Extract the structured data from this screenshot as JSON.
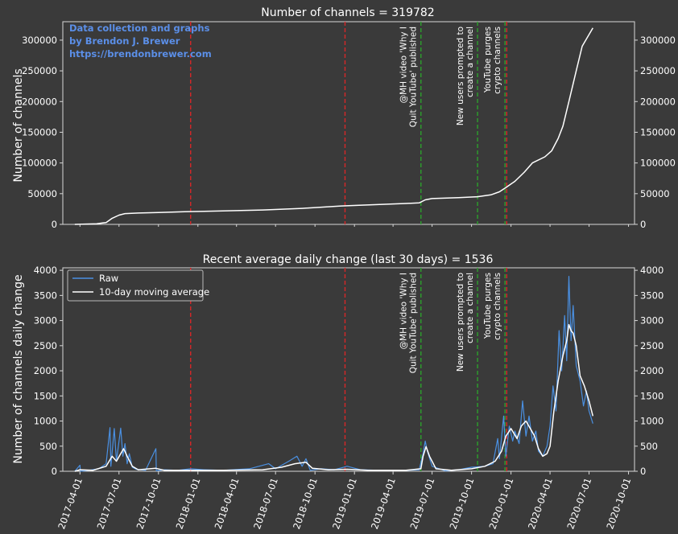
{
  "colors": {
    "background": "#3a3a3a",
    "axes": "#d8d8d8",
    "text": "#ffffff",
    "raw": "#4a90e2",
    "avg": "#ffffff",
    "red_line": "#d62728",
    "green_line": "#2ca02c",
    "credit": "#5b8fe8"
  },
  "credit": [
    "Data collection and graphs",
    "by Brendon J. Brewer",
    "https://brendonbrewer.com"
  ],
  "chart_data": [
    {
      "type": "line",
      "title": "Number of channels = 319782",
      "xlabel": "",
      "ylabel": "Number of channels",
      "ylim": [
        0,
        330000
      ],
      "yticks": [
        0,
        50000,
        100000,
        150000,
        200000,
        250000,
        300000
      ],
      "ytick_labels": [
        "0",
        "50000",
        "100000",
        "150000",
        "200000",
        "250000",
        "300000"
      ],
      "right_axis": true,
      "grid": false,
      "series": [
        {
          "points": [
            [
              "2017-03-20",
              0
            ],
            [
              "2017-05-10",
              1000
            ],
            [
              "2017-06-01",
              3000
            ],
            [
              "2017-06-15",
              10000
            ],
            [
              "2017-07-01",
              15000
            ],
            [
              "2017-07-15",
              17500
            ],
            [
              "2017-08-15",
              18500
            ],
            [
              "2017-10-01",
              19300
            ],
            [
              "2017-12-01",
              20500
            ],
            [
              "2018-03-01",
              22000
            ],
            [
              "2018-06-01",
              23500
            ],
            [
              "2018-09-01",
              26000
            ],
            [
              "2018-12-01",
              30000
            ],
            [
              "2019-03-01",
              32500
            ],
            [
              "2019-05-01",
              34000
            ],
            [
              "2019-06-01",
              35000
            ],
            [
              "2019-06-15",
              40000
            ],
            [
              "2019-07-01",
              42000
            ],
            [
              "2019-09-01",
              43500
            ],
            [
              "2019-10-15",
              45000
            ],
            [
              "2019-11-15",
              48000
            ],
            [
              "2019-12-05",
              53000
            ],
            [
              "2019-12-20",
              60000
            ],
            [
              "2020-01-10",
              70000
            ],
            [
              "2020-02-01",
              85000
            ],
            [
              "2020-02-20",
              100000
            ],
            [
              "2020-03-20",
              110000
            ],
            [
              "2020-04-05",
              120000
            ],
            [
              "2020-04-20",
              140000
            ],
            [
              "2020-05-01",
              160000
            ],
            [
              "2020-05-15",
              200000
            ],
            [
              "2020-06-01",
              250000
            ],
            [
              "2020-06-15",
              290000
            ],
            [
              "2020-07-10",
              319782
            ]
          ]
        }
      ],
      "vlines": [
        {
          "date": "2017-12-15",
          "color": "red"
        },
        {
          "date": "2018-12-10",
          "color": "red"
        },
        {
          "date": "2019-06-05",
          "color": "green",
          "label": "@MH video 'Why I Quit YouTube' published"
        },
        {
          "date": "2019-10-15",
          "color": "green",
          "label": "New users prompted to create a channel"
        },
        {
          "date": "2019-12-18",
          "color": "green",
          "label": "YouTube purges crypto channels"
        },
        {
          "date": "2019-12-22",
          "color": "red"
        }
      ]
    },
    {
      "type": "line",
      "title": "Recent average daily change (last 30 days) = 1536",
      "xlabel": "",
      "ylabel": "Number of channels daily change",
      "ylim": [
        0,
        4050
      ],
      "yticks": [
        0,
        500,
        1000,
        1500,
        2000,
        2500,
        3000,
        3500,
        4000
      ],
      "ytick_labels": [
        "0",
        "500",
        "1000",
        "1500",
        "2000",
        "2500",
        "3000",
        "3500",
        "4000"
      ],
      "right_axis": true,
      "grid": false,
      "legend": "top-left",
      "x_tick_labels": [
        "2017-04-01",
        "2017-07-01",
        "2017-10-01",
        "2018-01-01",
        "2018-04-01",
        "2018-07-01",
        "2018-10-01",
        "2019-01-01",
        "2019-04-01",
        "2019-07-01",
        "2019-10-01",
        "2020-01-01",
        "2020-04-01",
        "2020-07-01",
        "2020-10-01"
      ],
      "xlim": [
        "2017-02-20",
        "2020-10-15"
      ],
      "series": [
        {
          "name": "Raw",
          "color": "#4a90e2",
          "points": [
            [
              "2017-03-20",
              0
            ],
            [
              "2017-04-01",
              120
            ],
            [
              "2017-04-02",
              0
            ],
            [
              "2017-04-20",
              20
            ],
            [
              "2017-05-15",
              50
            ],
            [
              "2017-06-01",
              150
            ],
            [
              "2017-06-10",
              870
            ],
            [
              "2017-06-12",
              100
            ],
            [
              "2017-06-20",
              850
            ],
            [
              "2017-06-25",
              200
            ],
            [
              "2017-07-01",
              600
            ],
            [
              "2017-07-05",
              860
            ],
            [
              "2017-07-10",
              300
            ],
            [
              "2017-07-15",
              550
            ],
            [
              "2017-07-20",
              150
            ],
            [
              "2017-07-25",
              350
            ],
            [
              "2017-08-01",
              80
            ],
            [
              "2017-08-10",
              40
            ],
            [
              "2017-09-01",
              20
            ],
            [
              "2017-09-25",
              450
            ],
            [
              "2017-09-26",
              10
            ],
            [
              "2017-10-15",
              30
            ],
            [
              "2017-11-15",
              20
            ],
            [
              "2017-12-15",
              50
            ],
            [
              "2018-01-15",
              30
            ],
            [
              "2018-03-01",
              20
            ],
            [
              "2018-05-01",
              50
            ],
            [
              "2018-06-15",
              150
            ],
            [
              "2018-07-01",
              50
            ],
            [
              "2018-08-01",
              200
            ],
            [
              "2018-08-20",
              300
            ],
            [
              "2018-09-01",
              100
            ],
            [
              "2018-09-10",
              250
            ],
            [
              "2018-09-20",
              20
            ],
            [
              "2018-10-15",
              50
            ],
            [
              "2018-11-15",
              30
            ],
            [
              "2018-12-15",
              100
            ],
            [
              "2019-01-15",
              30
            ],
            [
              "2019-03-01",
              20
            ],
            [
              "2019-05-01",
              20
            ],
            [
              "2019-06-01",
              30
            ],
            [
              "2019-06-10",
              350
            ],
            [
              "2019-06-15",
              600
            ],
            [
              "2019-06-20",
              400
            ],
            [
              "2019-07-01",
              100
            ],
            [
              "2019-08-01",
              10
            ],
            [
              "2019-09-01",
              30
            ],
            [
              "2019-10-01",
              80
            ],
            [
              "2019-11-01",
              100
            ],
            [
              "2019-11-20",
              150
            ],
            [
              "2019-12-01",
              650
            ],
            [
              "2019-12-05",
              250
            ],
            [
              "2019-12-15",
              1100
            ],
            [
              "2019-12-20",
              300
            ],
            [
              "2019-12-28",
              900
            ],
            [
              "2020-01-05",
              600
            ],
            [
              "2020-01-10",
              800
            ],
            [
              "2020-01-20",
              550
            ],
            [
              "2020-01-28",
              1400
            ],
            [
              "2020-02-05",
              700
            ],
            [
              "2020-02-12",
              1100
            ],
            [
              "2020-02-20",
              600
            ],
            [
              "2020-02-28",
              800
            ],
            [
              "2020-03-05",
              400
            ],
            [
              "2020-03-15",
              300
            ],
            [
              "2020-03-25",
              500
            ],
            [
              "2020-04-01",
              900
            ],
            [
              "2020-04-08",
              1700
            ],
            [
              "2020-04-15",
              1200
            ],
            [
              "2020-04-22",
              2800
            ],
            [
              "2020-04-28",
              2000
            ],
            [
              "2020-05-05",
              3100
            ],
            [
              "2020-05-10",
              2200
            ],
            [
              "2020-05-15",
              3880
            ],
            [
              "2020-05-20",
              2600
            ],
            [
              "2020-05-25",
              3300
            ],
            [
              "2020-06-01",
              2100
            ],
            [
              "2020-06-10",
              1800
            ],
            [
              "2020-06-18",
              1300
            ],
            [
              "2020-06-25",
              1600
            ],
            [
              "2020-07-01",
              1200
            ],
            [
              "2020-07-10",
              950
            ]
          ]
        },
        {
          "name": "10-day moving average",
          "color": "#ffffff",
          "points": [
            [
              "2017-03-20",
              0
            ],
            [
              "2017-04-01",
              30
            ],
            [
              "2017-05-01",
              20
            ],
            [
              "2017-06-01",
              100
            ],
            [
              "2017-06-15",
              300
            ],
            [
              "2017-06-25",
              200
            ],
            [
              "2017-07-05",
              350
            ],
            [
              "2017-07-12",
              450
            ],
            [
              "2017-07-20",
              300
            ],
            [
              "2017-08-01",
              100
            ],
            [
              "2017-08-15",
              30
            ],
            [
              "2017-09-25",
              60
            ],
            [
              "2017-10-15",
              20
            ],
            [
              "2017-12-15",
              20
            ],
            [
              "2018-03-01",
              20
            ],
            [
              "2018-06-01",
              30
            ],
            [
              "2018-07-15",
              80
            ],
            [
              "2018-08-15",
              150
            ],
            [
              "2018-09-10",
              180
            ],
            [
              "2018-09-25",
              60
            ],
            [
              "2018-11-01",
              30
            ],
            [
              "2018-12-15",
              40
            ],
            [
              "2019-02-01",
              20
            ],
            [
              "2019-05-01",
              20
            ],
            [
              "2019-06-05",
              50
            ],
            [
              "2019-06-10",
              300
            ],
            [
              "2019-06-17",
              490
            ],
            [
              "2019-06-25",
              300
            ],
            [
              "2019-07-10",
              50
            ],
            [
              "2019-08-15",
              20
            ],
            [
              "2019-10-01",
              50
            ],
            [
              "2019-11-01",
              100
            ],
            [
              "2019-11-25",
              200
            ],
            [
              "2019-12-10",
              400
            ],
            [
              "2019-12-20",
              700
            ],
            [
              "2020-01-01",
              850
            ],
            [
              "2020-01-15",
              650
            ],
            [
              "2020-01-25",
              900
            ],
            [
              "2020-02-05",
              1000
            ],
            [
              "2020-02-15",
              850
            ],
            [
              "2020-02-25",
              700
            ],
            [
              "2020-03-05",
              450
            ],
            [
              "2020-03-15",
              300
            ],
            [
              "2020-03-25",
              350
            ],
            [
              "2020-04-01",
              500
            ],
            [
              "2020-04-10",
              1200
            ],
            [
              "2020-04-20",
              1800
            ],
            [
              "2020-05-01",
              2300
            ],
            [
              "2020-05-10",
              2600
            ],
            [
              "2020-05-15",
              2920
            ],
            [
              "2020-05-20",
              2800
            ],
            [
              "2020-05-25",
              2750
            ],
            [
              "2020-06-01",
              2500
            ],
            [
              "2020-06-10",
              1900
            ],
            [
              "2020-06-20",
              1700
            ],
            [
              "2020-07-01",
              1400
            ],
            [
              "2020-07-10",
              1100
            ]
          ]
        }
      ],
      "vlines": [
        {
          "date": "2017-12-15",
          "color": "red"
        },
        {
          "date": "2018-12-10",
          "color": "red"
        },
        {
          "date": "2019-06-05",
          "color": "green",
          "label": "@MH video 'Why I Quit YouTube' published"
        },
        {
          "date": "2019-10-15",
          "color": "green",
          "label": "New users prompted to create a channel"
        },
        {
          "date": "2019-12-18",
          "color": "green",
          "label": "YouTube purges crypto channels"
        },
        {
          "date": "2019-12-22",
          "color": "red"
        }
      ]
    }
  ]
}
